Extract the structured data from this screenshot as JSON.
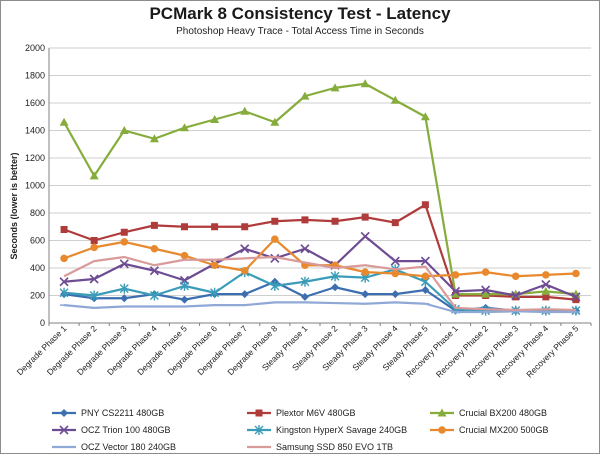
{
  "chart_data": {
    "type": "line",
    "title": "PCMark 8 Consistency Test - Latency",
    "subtitle": "Photoshop Heavy Trace - Total Access Time in Seconds",
    "ylabel": "Seconds (lower is better)",
    "xlabel": "",
    "ylim": [
      0,
      2000
    ],
    "yticks": [
      0,
      200,
      400,
      600,
      800,
      1000,
      1200,
      1400,
      1600,
      1800,
      2000
    ],
    "grid": true,
    "legend_position": "bottom",
    "categories": [
      "Degrade Phase 1",
      "Degrade Phase 2",
      "Degrade Phase 3",
      "Degrade Phase 4",
      "Degrade Phase 5",
      "Degrade Phase 6",
      "Degrade Phase 7",
      "Degrade Phase 8",
      "Steady Phase 1",
      "Steady Phase 2",
      "Steady Phase 3",
      "Steady Phase 4",
      "Steady Phase 5",
      "Recovery Phase 1",
      "Recovery Phase 2",
      "Recovery Phase 3",
      "Recovery Phase 4",
      "Recovery Phase 5"
    ],
    "series": [
      {
        "name": "PNY CS2211 480GB",
        "color": "#3d6fb0",
        "marker": "diamond",
        "values": [
          210,
          180,
          180,
          210,
          170,
          210,
          210,
          300,
          190,
          260,
          210,
          210,
          240,
          90,
          110,
          90,
          90,
          90
        ]
      },
      {
        "name": "Plextor M6V 480GB",
        "color": "#b03b3b",
        "marker": "square",
        "values": [
          680,
          600,
          660,
          710,
          700,
          700,
          700,
          740,
          750,
          740,
          770,
          730,
          860,
          200,
          200,
          190,
          190,
          170
        ]
      },
      {
        "name": "Crucial BX200 480GB",
        "color": "#86ad3c",
        "marker": "triangle",
        "values": [
          1460,
          1070,
          1400,
          1340,
          1420,
          1480,
          1540,
          1460,
          1650,
          1710,
          1740,
          1620,
          1500,
          210,
          210,
          210,
          230,
          210
        ]
      },
      {
        "name": "OCZ Trion 100 480GB",
        "color": "#6e4c94",
        "marker": "x",
        "values": [
          300,
          320,
          430,
          380,
          310,
          430,
          540,
          470,
          540,
          420,
          630,
          450,
          450,
          230,
          240,
          200,
          280,
          190
        ]
      },
      {
        "name": "Kingston HyperX Savage 240GB",
        "color": "#3a9cb8",
        "marker": "star",
        "values": [
          220,
          200,
          250,
          200,
          270,
          220,
          370,
          270,
          300,
          340,
          330,
          390,
          300,
          100,
          90,
          90,
          90,
          90
        ]
      },
      {
        "name": "Crucial MX200 500GB",
        "color": "#e8892e",
        "marker": "circle",
        "values": [
          470,
          550,
          590,
          540,
          490,
          420,
          380,
          610,
          420,
          420,
          370,
          360,
          340,
          350,
          370,
          340,
          350,
          360
        ]
      },
      {
        "name": "OCZ Vector 180 240GB",
        "color": "#8fa8d6",
        "marker": "dash",
        "values": [
          130,
          110,
          120,
          120,
          120,
          130,
          130,
          150,
          150,
          145,
          140,
          150,
          140,
          80,
          80,
          85,
          80,
          80
        ]
      },
      {
        "name": "Samsung SSD 850 EVO 1TB",
        "color": "#d99a9a",
        "marker": "none",
        "values": [
          340,
          450,
          480,
          420,
          460,
          460,
          470,
          480,
          440,
          400,
          420,
          390,
          410,
          110,
          100,
          95,
          100,
          95
        ]
      }
    ]
  }
}
